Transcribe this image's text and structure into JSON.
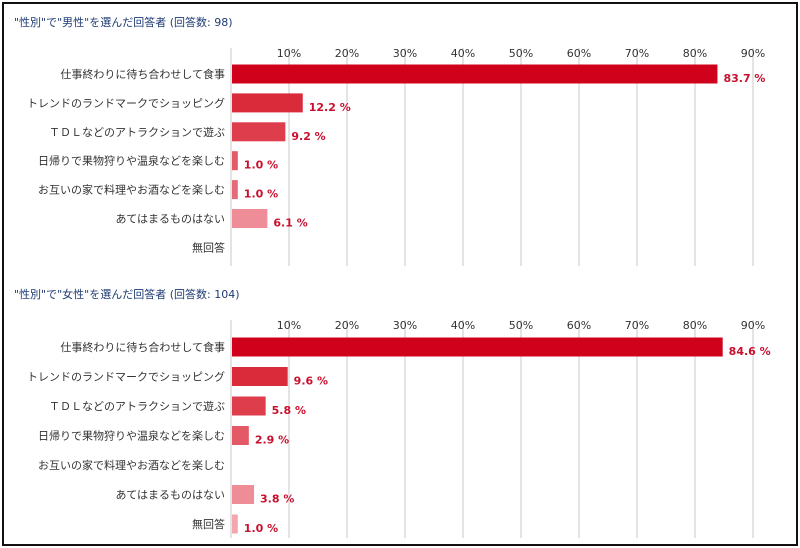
{
  "chart_data": [
    {
      "type": "bar",
      "orientation": "horizontal",
      "title": "\"性別\"で\"男性\"を選んだ回答者 (回答数: 98)",
      "categories": [
        "仕事終わりに待ち合わせして食事",
        "トレンドのランドマークでショッピング",
        "ＴＤＬなどのアトラクションで遊ぶ",
        "日帰りで果物狩りや温泉などを楽しむ",
        "お互いの家で料理やお酒などを楽しむ",
        "あてはまるものはない",
        "無回答"
      ],
      "values": [
        83.7,
        12.2,
        9.2,
        1.0,
        1.0,
        6.1,
        0
      ],
      "value_labels": [
        "83.7 %",
        "12.2 %",
        "9.2 %",
        "1.0 %",
        "1.0 %",
        "6.1 %",
        ""
      ],
      "colors": [
        "#d0021b",
        "#d92b3a",
        "#de3d4c",
        "#e35966",
        "#e66b78",
        "#ee8d97",
        "#f2a7ae"
      ],
      "xticks": [
        "10%",
        "20%",
        "30%",
        "40%",
        "50%",
        "60%",
        "70%",
        "80%",
        "90%"
      ],
      "xlim": [
        0,
        90
      ],
      "grid": true
    },
    {
      "type": "bar",
      "orientation": "horizontal",
      "title": "\"性別\"で\"女性\"を選んだ回答者 (回答数: 104)",
      "categories": [
        "仕事終わりに待ち合わせして食事",
        "トレンドのランドマークでショッピング",
        "ＴＤＬなどのアトラクションで遊ぶ",
        "日帰りで果物狩りや温泉などを楽しむ",
        "お互いの家で料理やお酒などを楽しむ",
        "あてはまるものはない",
        "無回答"
      ],
      "values": [
        84.6,
        9.6,
        5.8,
        2.9,
        0,
        3.8,
        1.0
      ],
      "value_labels": [
        "84.6 %",
        "9.6 %",
        "5.8 %",
        "2.9 %",
        "",
        "3.8 %",
        "1.0 %"
      ],
      "colors": [
        "#d0021b",
        "#d92b3a",
        "#de3d4c",
        "#e35966",
        "#e66b78",
        "#ee8d97",
        "#f2a7ae"
      ],
      "xticks": [
        "10%",
        "20%",
        "30%",
        "40%",
        "50%",
        "60%",
        "70%",
        "80%",
        "90%"
      ],
      "xlim": [
        0,
        90
      ],
      "grid": true
    }
  ]
}
